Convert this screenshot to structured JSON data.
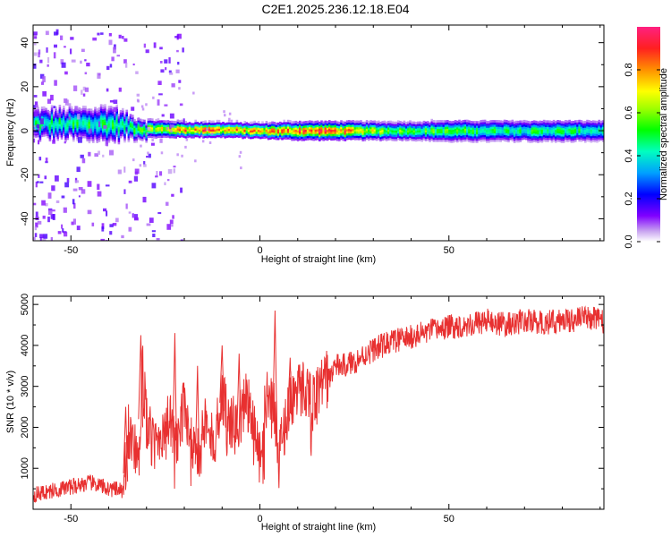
{
  "figure": {
    "title": "C2E1.2025.236.12.18.E04"
  },
  "chart_data": [
    {
      "type": "heatmap",
      "title": "",
      "xlabel": "Height of straight line (km)",
      "ylabel": "Frequency (Hz)",
      "xlim": [
        -60,
        91
      ],
      "ylim": [
        -50,
        48
      ],
      "xticks": [
        -50,
        0,
        50
      ],
      "yticks": [
        -40,
        -20,
        0,
        20,
        40
      ],
      "colorbar": {
        "label": "Normalized spectral amplitude",
        "range": [
          0,
          1
        ],
        "ticks": [
          0.0,
          0.2,
          0.4,
          0.6,
          0.8
        ]
      },
      "ridge": {
        "description_points_x_km": [
          -60,
          -50,
          -40,
          -35,
          -30,
          -20,
          -10,
          0,
          10,
          20,
          30,
          40,
          50,
          60,
          70,
          80,
          90
        ],
        "center_hz": [
          3,
          3,
          3,
          2,
          1,
          0.5,
          0.5,
          0,
          0,
          0,
          0,
          0,
          0,
          0,
          0,
          0,
          0
        ],
        "halfwidth_hz": [
          5,
          5,
          6,
          4,
          3,
          2.5,
          2.5,
          2.5,
          3,
          3,
          3,
          3,
          3.5,
          3.5,
          3.5,
          3.5,
          3.5
        ],
        "peak_amplitude": [
          0.45,
          0.5,
          0.5,
          0.45,
          0.6,
          0.85,
          0.85,
          0.75,
          0.9,
          0.9,
          0.65,
          0.55,
          0.55,
          0.5,
          0.5,
          0.5,
          0.45
        ]
      }
    },
    {
      "type": "line",
      "title": "",
      "xlabel": "Height of straight line (km)",
      "ylabel": "SNR (10 * v/v)",
      "xlim": [
        -60,
        91
      ],
      "ylim": [
        0,
        5200
      ],
      "xticks": [
        -50,
        0,
        50
      ],
      "yticks": [
        1000,
        2000,
        3000,
        4000,
        5000
      ],
      "series": [
        {
          "name": "SNR",
          "color": "#e83030",
          "x": [
            -60,
            -55,
            -50,
            -45,
            -40,
            -36,
            -35,
            -32,
            -31,
            -30,
            -28,
            -26,
            -24,
            -22,
            -20,
            -18,
            -16,
            -14,
            -12,
            -10,
            -8,
            -6,
            -4,
            -2,
            0,
            2,
            4,
            5,
            6,
            8,
            10,
            12,
            14,
            16,
            18,
            20,
            22,
            25,
            30,
            35,
            40,
            45,
            50,
            55,
            60,
            65,
            70,
            75,
            80,
            85,
            90,
            91
          ],
          "y": [
            350,
            450,
            550,
            650,
            500,
            450,
            1900,
            1400,
            3600,
            2100,
            1500,
            1900,
            2200,
            1500,
            2600,
            1700,
            1300,
            2400,
            1500,
            2900,
            2200,
            1900,
            2800,
            2300,
            1300,
            2900,
            2400,
            1200,
            1800,
            2700,
            2900,
            3000,
            2600,
            3000,
            3200,
            3500,
            3500,
            3600,
            3900,
            4100,
            4200,
            4350,
            4450,
            4500,
            4600,
            4500,
            4600,
            4550,
            4600,
            4650,
            4700,
            4500
          ],
          "spikes": [
            {
              "x": -35.5,
              "y": 2500
            },
            {
              "x": -31.5,
              "y": 4250
            },
            {
              "x": -22.5,
              "y": 4300
            },
            {
              "x": -16.5,
              "y": 3500
            },
            {
              "x": -10,
              "y": 4000
            },
            {
              "x": -5.5,
              "y": 3800
            },
            {
              "x": 4,
              "y": 4850
            },
            {
              "x": 8,
              "y": 3700
            }
          ]
        }
      ]
    }
  ]
}
